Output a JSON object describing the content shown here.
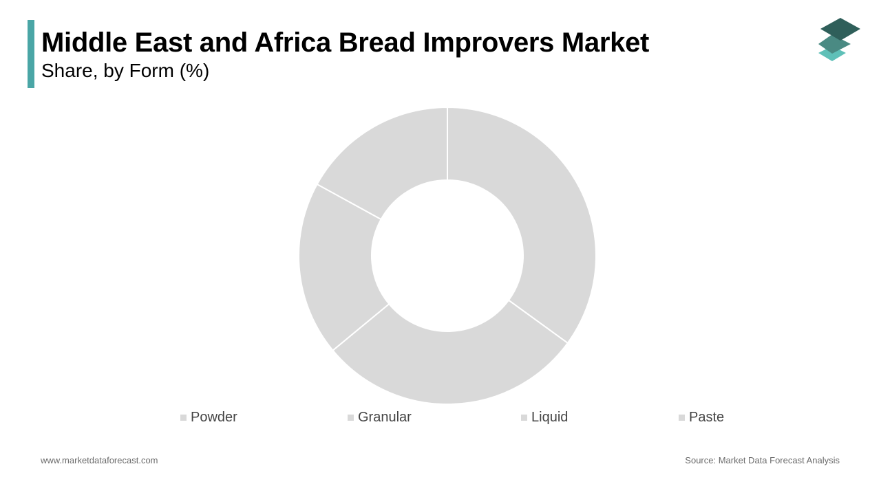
{
  "header": {
    "title": "Middle East and Africa Bread Improvers Market",
    "subtitle": "Share, by Form (%)"
  },
  "colors": {
    "accent": "#4aa6a6",
    "slice": "#d9d9d9",
    "slice_border": "#ffffff",
    "logo_top": "#2f5f5a",
    "logo_mid": "#4a8a83",
    "logo_bottom": "#5fc0b8"
  },
  "logo": {
    "icon": "stacked-layers-icon"
  },
  "chart_data": {
    "type": "pie",
    "donut": true,
    "title": "Middle East and Africa Bread Improvers Market",
    "subtitle": "Share, by Form (%)",
    "categories": [
      "Powder",
      "Granular",
      "Liquid",
      "Paste"
    ],
    "values": [
      35,
      29,
      19,
      17
    ],
    "legend_position": "bottom"
  },
  "footer": {
    "website": "www.marketdataforecast.com",
    "source": "Source: Market Data Forecast Analysis"
  }
}
